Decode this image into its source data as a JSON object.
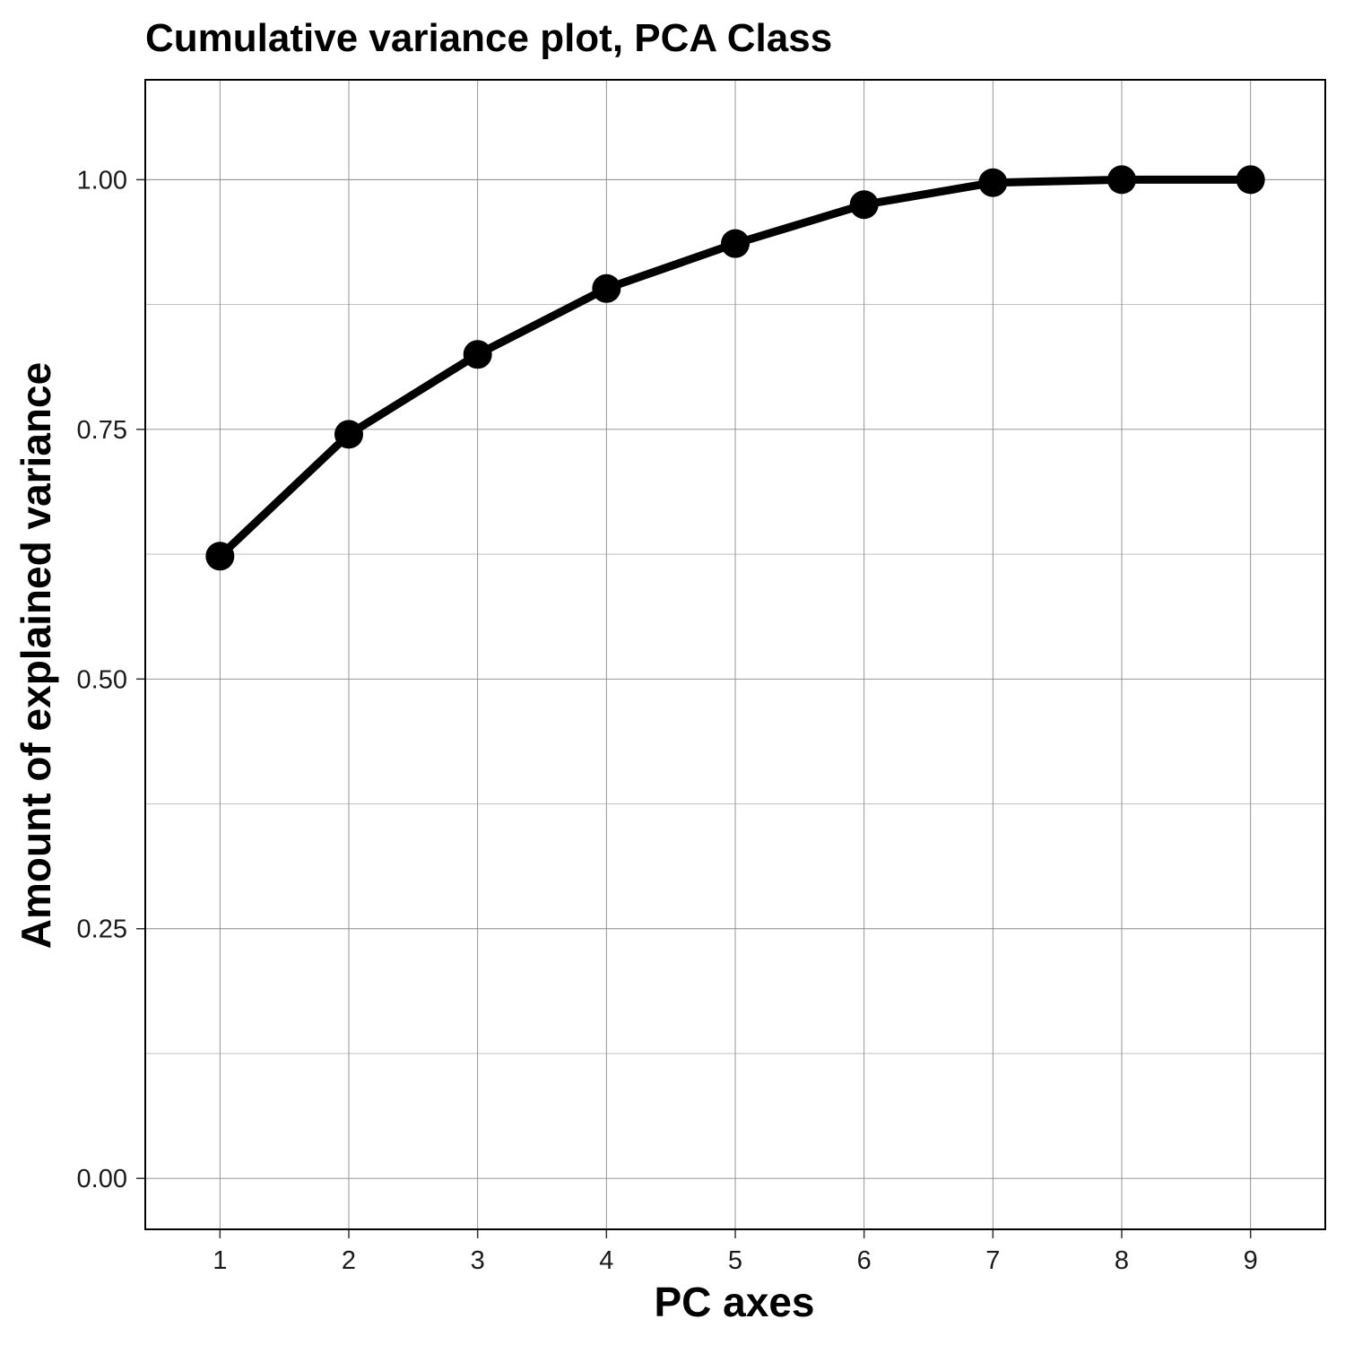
{
  "chart_data": {
    "type": "line",
    "title": "Cumulative variance plot, PCA Class",
    "xlabel": "PC axes",
    "ylabel": "Amount of explained variance",
    "x": [
      1,
      2,
      3,
      4,
      5,
      6,
      7,
      8,
      9
    ],
    "x_tick_labels": [
      "1",
      "2",
      "3",
      "4",
      "5",
      "6",
      "7",
      "8",
      "9"
    ],
    "y_ticks": [
      0.0,
      0.25,
      0.5,
      0.75,
      1.0
    ],
    "y_tick_labels": [
      "0.00",
      "0.25",
      "0.50",
      "0.75",
      "1.00"
    ],
    "xlim": [
      0.42,
      9.58
    ],
    "ylim": [
      -0.051,
      1.1
    ],
    "series": [
      {
        "values": [
          0.623,
          0.745,
          0.825,
          0.891,
          0.936,
          0.975,
          0.997,
          1.0,
          1.0
        ],
        "color": "#000000",
        "markers": true
      }
    ],
    "grid": true,
    "legend": "none"
  }
}
